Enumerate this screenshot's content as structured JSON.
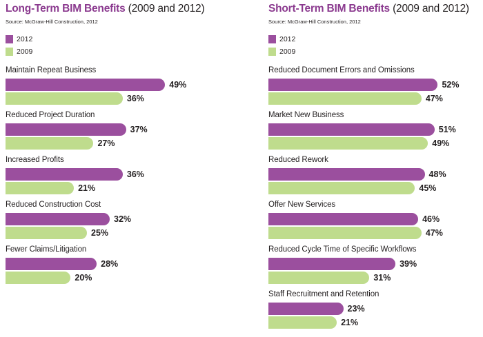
{
  "chart_data": [
    {
      "type": "bar",
      "orientation": "horizontal",
      "title": "Long-Term BIM Benefits",
      "subtitle": "(2009 and 2012)",
      "source": "Source: McGraw-Hill Construction, 2012",
      "legend_placement": "top-left",
      "categories": [
        "Maintain Repeat Business",
        "Reduced Project Duration",
        "Increased Profits",
        "Reduced Construction Cost",
        "Fewer Claims/Litigation"
      ],
      "series": [
        {
          "name": "2012",
          "color": "#9b4f9e",
          "values": [
            49,
            37,
            36,
            32,
            28
          ]
        },
        {
          "name": "2009",
          "color": "#bfdc8d",
          "values": [
            36,
            27,
            21,
            25,
            20
          ]
        }
      ],
      "value_suffix": "%",
      "grid": false
    },
    {
      "type": "bar",
      "orientation": "horizontal",
      "title": "Short-Term BIM Benefits",
      "subtitle": "(2009 and 2012)",
      "source": "Source: McGraw-Hill Construction, 2012",
      "legend_placement": "top-left",
      "categories": [
        "Reduced Document Errors and Omissions",
        "Market New Business",
        "Reduced Rework",
        "Offer New Services",
        "Reduced Cycle Time of Specific Workflows",
        "Staff Recruitment and Retention"
      ],
      "series": [
        {
          "name": "2012",
          "color": "#9b4f9e",
          "values": [
            52,
            51,
            48,
            46,
            39,
            23
          ]
        },
        {
          "name": "2009",
          "color": "#bfdc8d",
          "values": [
            47,
            49,
            45,
            47,
            31,
            21
          ]
        }
      ],
      "value_suffix": "%",
      "grid": false
    }
  ]
}
